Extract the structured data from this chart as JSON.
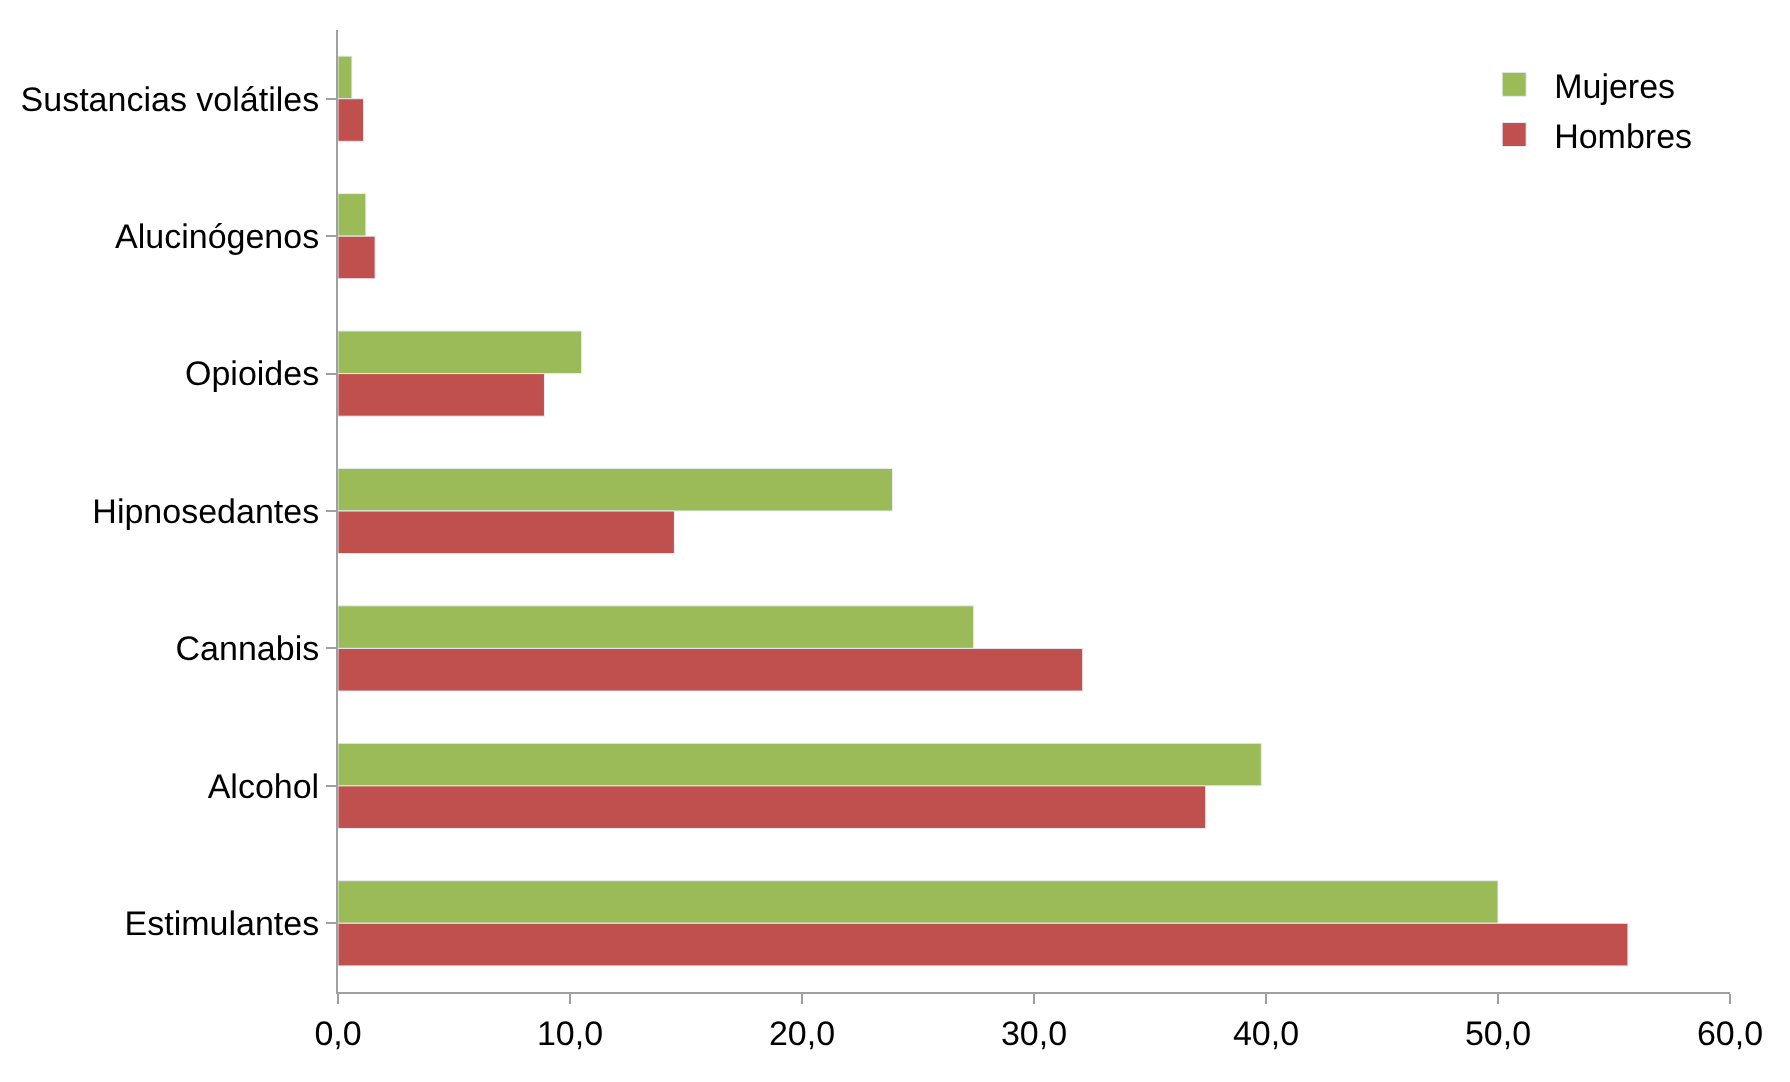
{
  "chart_data": {
    "type": "bar",
    "orientation": "horizontal",
    "categories": [
      "Sustancias volátiles",
      "Alucinógenos",
      "Opioides",
      "Hipnosedantes",
      "Cannabis",
      "Alcohol",
      "Estimulantes"
    ],
    "series": [
      {
        "name": "Mujeres",
        "color": "#9bbb59",
        "values": [
          0.6,
          1.2,
          10.5,
          23.9,
          27.4,
          39.8,
          50.0
        ]
      },
      {
        "name": "Hombres",
        "color": "#c0504d",
        "values": [
          1.1,
          1.6,
          8.9,
          14.5,
          32.1,
          37.4,
          55.6
        ]
      }
    ],
    "xlim": [
      0,
      60
    ],
    "xticks": [
      {
        "value": 0,
        "label": "0,0"
      },
      {
        "value": 10,
        "label": "10,0"
      },
      {
        "value": 20,
        "label": "20,0"
      },
      {
        "value": 30,
        "label": "30,0"
      },
      {
        "value": 40,
        "label": "40,0"
      },
      {
        "value": 50,
        "label": "50,0"
      },
      {
        "value": 60,
        "label": "60,0"
      }
    ],
    "grid": false,
    "legend": "top right"
  }
}
